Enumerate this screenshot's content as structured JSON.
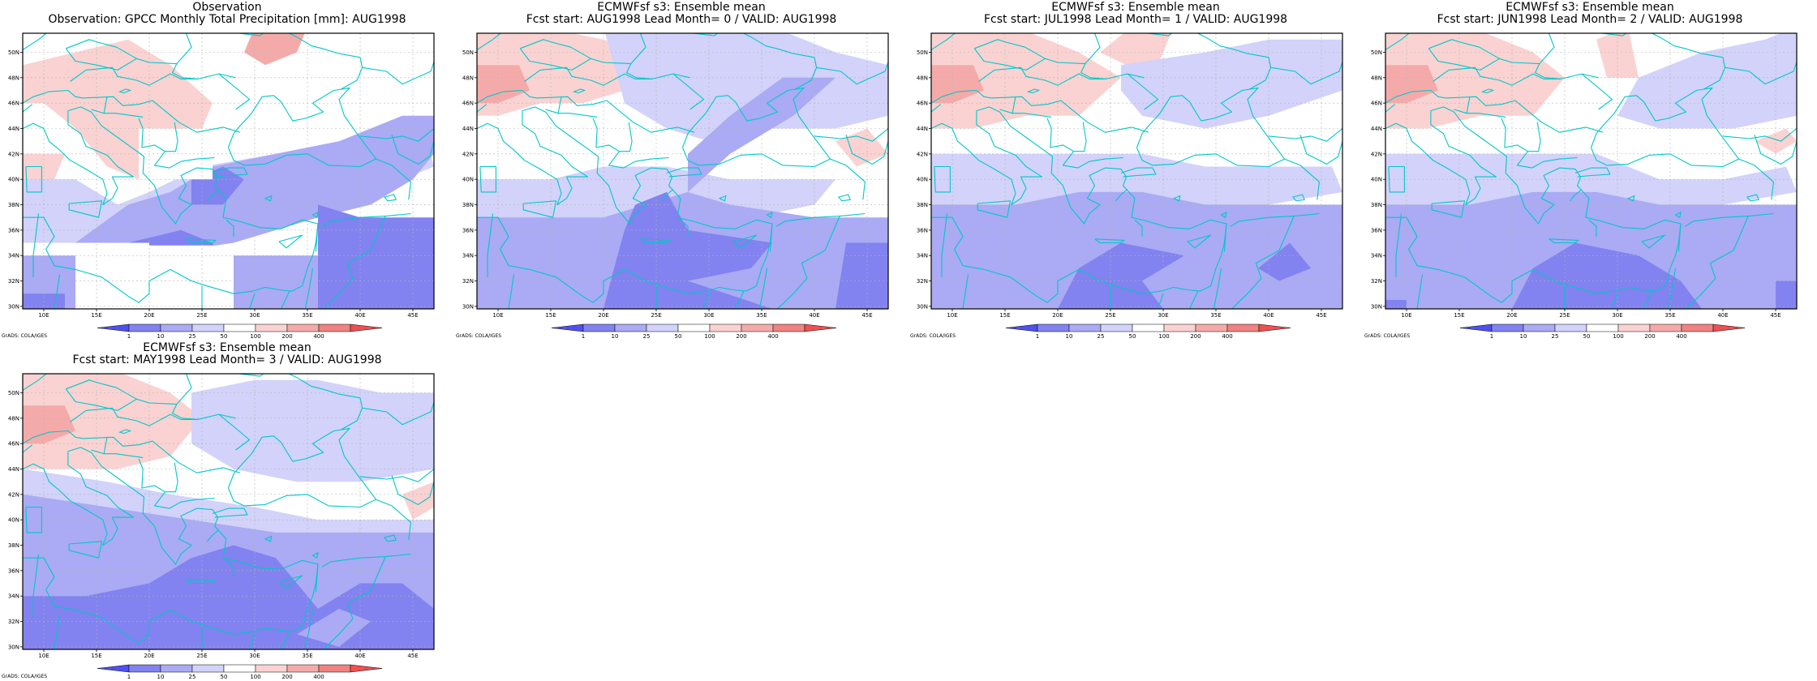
{
  "panels": [
    {
      "title_line1": "Observation",
      "title_line2": "Observation: GPCC Monthly Total Precipitation [mm]: AUG1998",
      "style": "obs"
    },
    {
      "title_line1": "ECMWFsf s3: Ensemble mean",
      "title_line2": "Fcst start: AUG1998   Lead Month= 0 / VALID: AUG1998",
      "style": "fc0"
    },
    {
      "title_line1": "ECMWFsf s3: Ensemble mean",
      "title_line2": "Fcst start: JUL1998   Lead Month= 1 / VALID: AUG1998",
      "style": "fc1"
    },
    {
      "title_line1": "ECMWFsf s3: Ensemble mean",
      "title_line2": "Fcst start: JUN1998   Lead Month= 2 / VALID: AUG1998",
      "style": "fc2"
    },
    {
      "title_line1": "ECMWFsf s3: Ensemble mean",
      "title_line2": "Fcst start: MAY1998   Lead Month= 3 / VALID: AUG1998",
      "style": "fc3"
    }
  ],
  "axes": {
    "lon_ticks": [
      "10E",
      "15E",
      "20E",
      "25E",
      "30E",
      "35E",
      "40E",
      "45E"
    ],
    "lat_ticks": [
      "30N",
      "32N",
      "34N",
      "36N",
      "38N",
      "40N",
      "42N",
      "44N",
      "46N",
      "48N",
      "50N"
    ],
    "lon_range": [
      8,
      47
    ],
    "lat_range": [
      29.8,
      51.5
    ]
  },
  "colorbar": {
    "levels": [
      "1",
      "10",
      "25",
      "50",
      "100",
      "200",
      "400"
    ],
    "colors": [
      "#5050f0",
      "#8282f0",
      "#aaaaf5",
      "#d2d2fa",
      "#ffffff",
      "#fad2d2",
      "#f5aaaa",
      "#f08282",
      "#f05050"
    ]
  },
  "credit": "GrADS: COLA/IGES",
  "colors": {
    "coast": "#00c8c8",
    "grid": "#b4b4b4"
  }
}
